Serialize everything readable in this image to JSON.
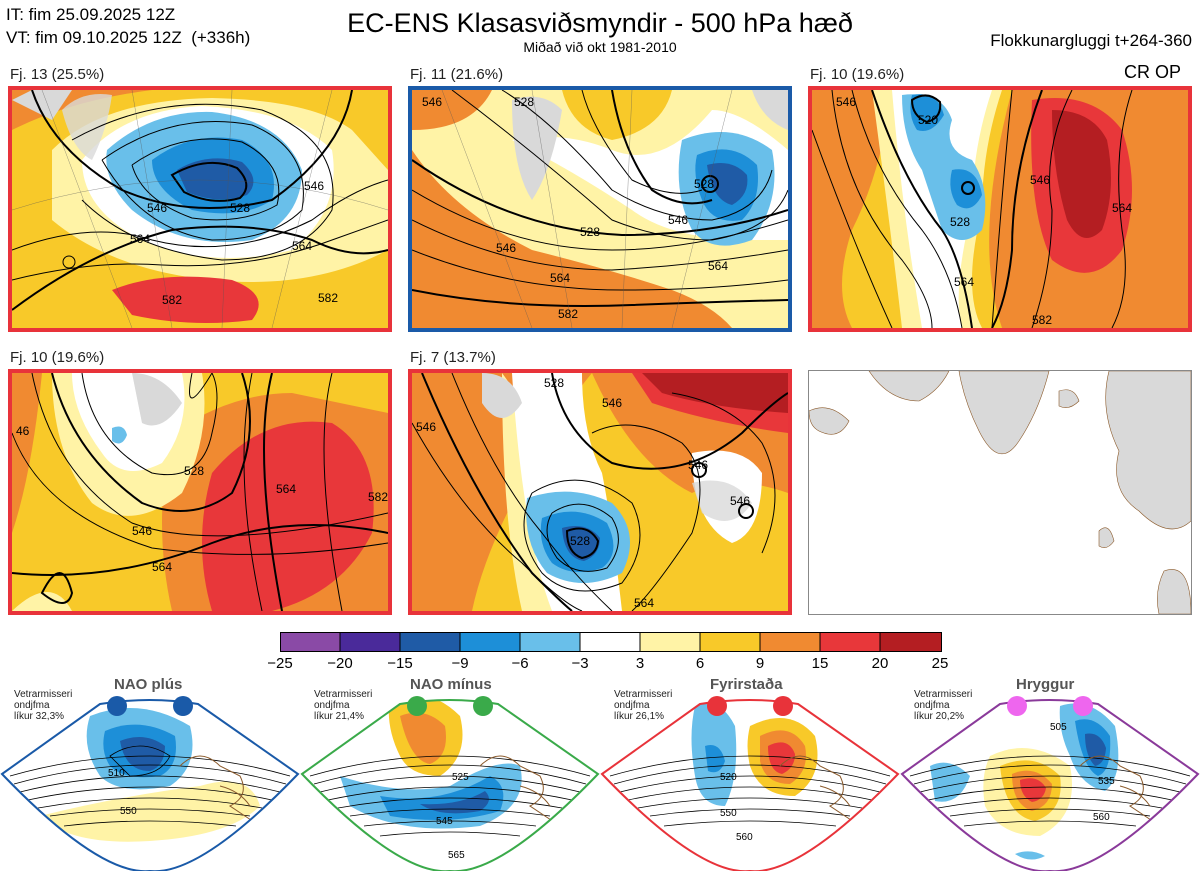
{
  "header": {
    "it_line": "IT: fim 25.09.2025 12Z",
    "vt_line": "VT: fim 09.10.2025 12Z  (+336h)",
    "title": "EC-ENS Klasasviðsmyndir - 500 hPa hæð",
    "subtitle": "Miðað við okt 1981-2010",
    "window_label": "Flokkunargluggi t+264-360",
    "regime_tag": "CR OP"
  },
  "colors": {
    "neg25": "#8a4aa6",
    "neg20": "#4a2a9a",
    "neg15": "#1f5ba6",
    "neg9": "#1d8fd8",
    "neg6": "#69bfea",
    "neg3": "#ffffff",
    "pos3": "#ffffff",
    "pos3b": "#fff3a6",
    "pos6": "#f8c929",
    "pos9": "#f08a31",
    "pos15": "#e8373a",
    "pos20": "#b41e22",
    "land": "#d9d9d9",
    "coast": "#8b5a2b",
    "border_red": "#e8333a",
    "border_blue": "#1a5aa8",
    "border_green": "#3aaa4a",
    "border_purple": "#8a3a9a"
  },
  "panels": [
    {
      "label": "Fj. 13 (25.5%)",
      "contours": [
        "546",
        "564",
        "528",
        "546",
        "564",
        "582",
        "582"
      ]
    },
    {
      "label": "Fj. 11 (21.6%)",
      "contours": [
        "546",
        "528",
        "528",
        "546",
        "528",
        "564",
        "546",
        "564",
        "582"
      ]
    },
    {
      "label": "Fj. 10 (19.6%)",
      "contours": [
        "546",
        "520",
        "528",
        "564",
        "546",
        "564",
        "582"
      ]
    },
    {
      "label": "Fj. 10 (19.6%)",
      "contours": [
        "46",
        "528",
        "546",
        "564",
        "564",
        "582"
      ]
    },
    {
      "label": "Fj. 7 (13.7%)",
      "contours": [
        "528",
        "546",
        "546",
        "546",
        "546",
        "528",
        "564"
      ]
    }
  ],
  "colorbar": {
    "ticks": [
      "−25",
      "−20",
      "−15",
      "−9",
      "−6",
      "−3",
      "3",
      "6",
      "9",
      "15",
      "20",
      "25"
    ]
  },
  "regimes": [
    {
      "name": "NAO plús",
      "note": "Vetrarmisseri\nondjfma\nlíkur 32,3%",
      "contours": [
        "510",
        "550"
      ]
    },
    {
      "name": "NAO mínus",
      "note": "Vetrarmisseri\nondjfma\nlíkur 21,4%",
      "contours": [
        "525",
        "545",
        "565"
      ]
    },
    {
      "name": "Fyrirstaða",
      "note": "Vetrarmisseri\nondjfma\nlíkur 26,1%",
      "contours": [
        "520",
        "550",
        "560"
      ]
    },
    {
      "name": "Hryggur",
      "note": "Vetrarmisseri\nondjfma\nlíkur 20,2%",
      "contours": [
        "505",
        "535",
        "560"
      ]
    }
  ]
}
